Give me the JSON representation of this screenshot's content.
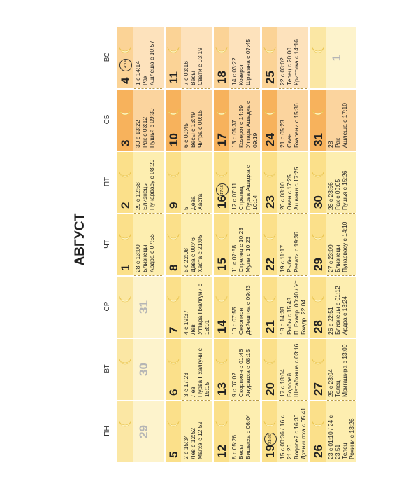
{
  "title": "АВГУСТ",
  "weekdays": [
    "ПН",
    "ВТ",
    "СР",
    "ЧТ",
    "ПТ",
    "СБ",
    "ВС"
  ],
  "weeks": [
    [
      {
        "day": "29",
        "other": true
      },
      {
        "day": "30",
        "other": true
      },
      {
        "day": "31",
        "other": true
      },
      {
        "day": "1",
        "lines": [
          "28 с 13:00",
          "Близнецы",
          "Ардра с 07:55"
        ]
      },
      {
        "day": "2",
        "lines": [
          "29 с 12:58",
          "Близнецы",
          "Пунарвасу с 08:29"
        ]
      },
      {
        "day": "3",
        "lines": [
          "30 с 13:22",
          "Рак с 03:12",
          "Пушья с 09:30"
        ]
      },
      {
        "day": "4",
        "badge": "14:14",
        "lines": [
          "1 с 14:14",
          "Рак",
          "Ашлеша с 10:57"
        ]
      }
    ],
    [
      {
        "day": "5",
        "lines": [
          "2 с 15:34",
          "Лев с 12:52",
          "Магха с 12:52"
        ]
      },
      {
        "day": "6",
        "lines": [
          "3 с 17:23",
          "Лев",
          "Пурва Пхалгуни с 15:15"
        ]
      },
      {
        "day": "7",
        "lines": [
          "4 с 19:37",
          "Лев",
          "Уттара Пхалгуни с 18:01"
        ]
      },
      {
        "day": "8",
        "lines": [
          "5 с 22:08",
          "Дева с 00:46",
          "Хаста с 21:05"
        ]
      },
      {
        "day": "9",
        "lines": [
          "5",
          "Дева",
          "Хаста"
        ]
      },
      {
        "day": "10",
        "lines": [
          "6 с 00:45",
          "Весы с 13:49",
          "Читра с 00:15"
        ]
      },
      {
        "day": "11",
        "lines": [
          "7 с 03:16",
          "Весы",
          "Свати с 03:19"
        ]
      }
    ],
    [
      {
        "day": "12",
        "lines": [
          "8 с 05:26",
          "Весы",
          "Вишакха с 06:04"
        ]
      },
      {
        "day": "13",
        "lines": [
          "9 с 07:02",
          "Скорпион с 01:46",
          "Анурадха с 08:15"
        ]
      },
      {
        "day": "14",
        "lines": [
          "10 с 07:55",
          "Скорпион",
          "Джйештха с 09:43"
        ]
      },
      {
        "day": "15",
        "lines": [
          "11 с 07:58",
          "Стрелец с 10:23",
          "Мула с 10:23"
        ]
      },
      {
        "day": "16",
        "badge": "17:15",
        "lines": [
          "12 с 07:11",
          "Стрелец",
          "Пурва Ашадха с 10:14"
        ]
      },
      {
        "day": "17",
        "lines": [
          "13 с 05:37",
          "Козерог с 14:59",
          "Уттара Ашадха с 09:19"
        ]
      },
      {
        "day": "18",
        "lines": [
          "14 с 03:22",
          "Козерог",
          "Шравана с 07:45"
        ]
      }
    ],
    [
      {
        "day": "19",
        "badge": "21:26",
        "lines": [
          "15 с 00:36 / 16 с 21:26",
          "Водолей с 16:30",
          "Дхаништха с 05:41"
        ]
      },
      {
        "day": "20",
        "lines": [
          "17 с 18:04",
          "Водолей",
          "Шатабхиша с 03:16"
        ]
      },
      {
        "day": "21",
        "lines": [
          "18 с 14:38",
          "Рыбы с 15:43",
          "П. Бхадр. 00:40 / Ут. Бхадр. 22:04"
        ]
      },
      {
        "day": "22",
        "lines": [
          "19 с 11:17",
          "Рыбы",
          "Ревати с 19:36"
        ]
      },
      {
        "day": "23",
        "lines": [
          "20 с 08:10",
          "Овен с 17:25",
          "Ашвини с 17:25"
        ]
      },
      {
        "day": "24",
        "lines": [
          "21 с 05:23",
          "Овен",
          "Бхарани с 15:36"
        ]
      },
      {
        "day": "25",
        "lines": [
          "22 с 03:02",
          "Телец с 20:00",
          "Криттика с 14:16"
        ]
      }
    ],
    [
      {
        "day": "26",
        "lines": [
          "23 с 01:10 / 24 с 23:51",
          "Телец",
          "Рохини с 13:26"
        ]
      },
      {
        "day": "27",
        "lines": [
          "25 с 23:04",
          "Телец",
          "Мригашира с 13:09"
        ]
      },
      {
        "day": "28",
        "lines": [
          "26 с 22:51",
          "Близнецы с 01:12",
          "Ардра с 13:24"
        ]
      },
      {
        "day": "29",
        "lines": [
          "27 с 23:09",
          "Близнецы",
          "Пунарвасу с 14:10"
        ]
      },
      {
        "day": "30",
        "lines": [
          "28 с 23:56",
          "Рак с 09:05",
          "Пушья с 15:26"
        ]
      },
      {
        "day": "31",
        "lines": [
          "28",
          "Рак",
          "Ашлеша с 17:10"
        ]
      },
      {
        "day": "1",
        "other": true
      }
    ]
  ]
}
